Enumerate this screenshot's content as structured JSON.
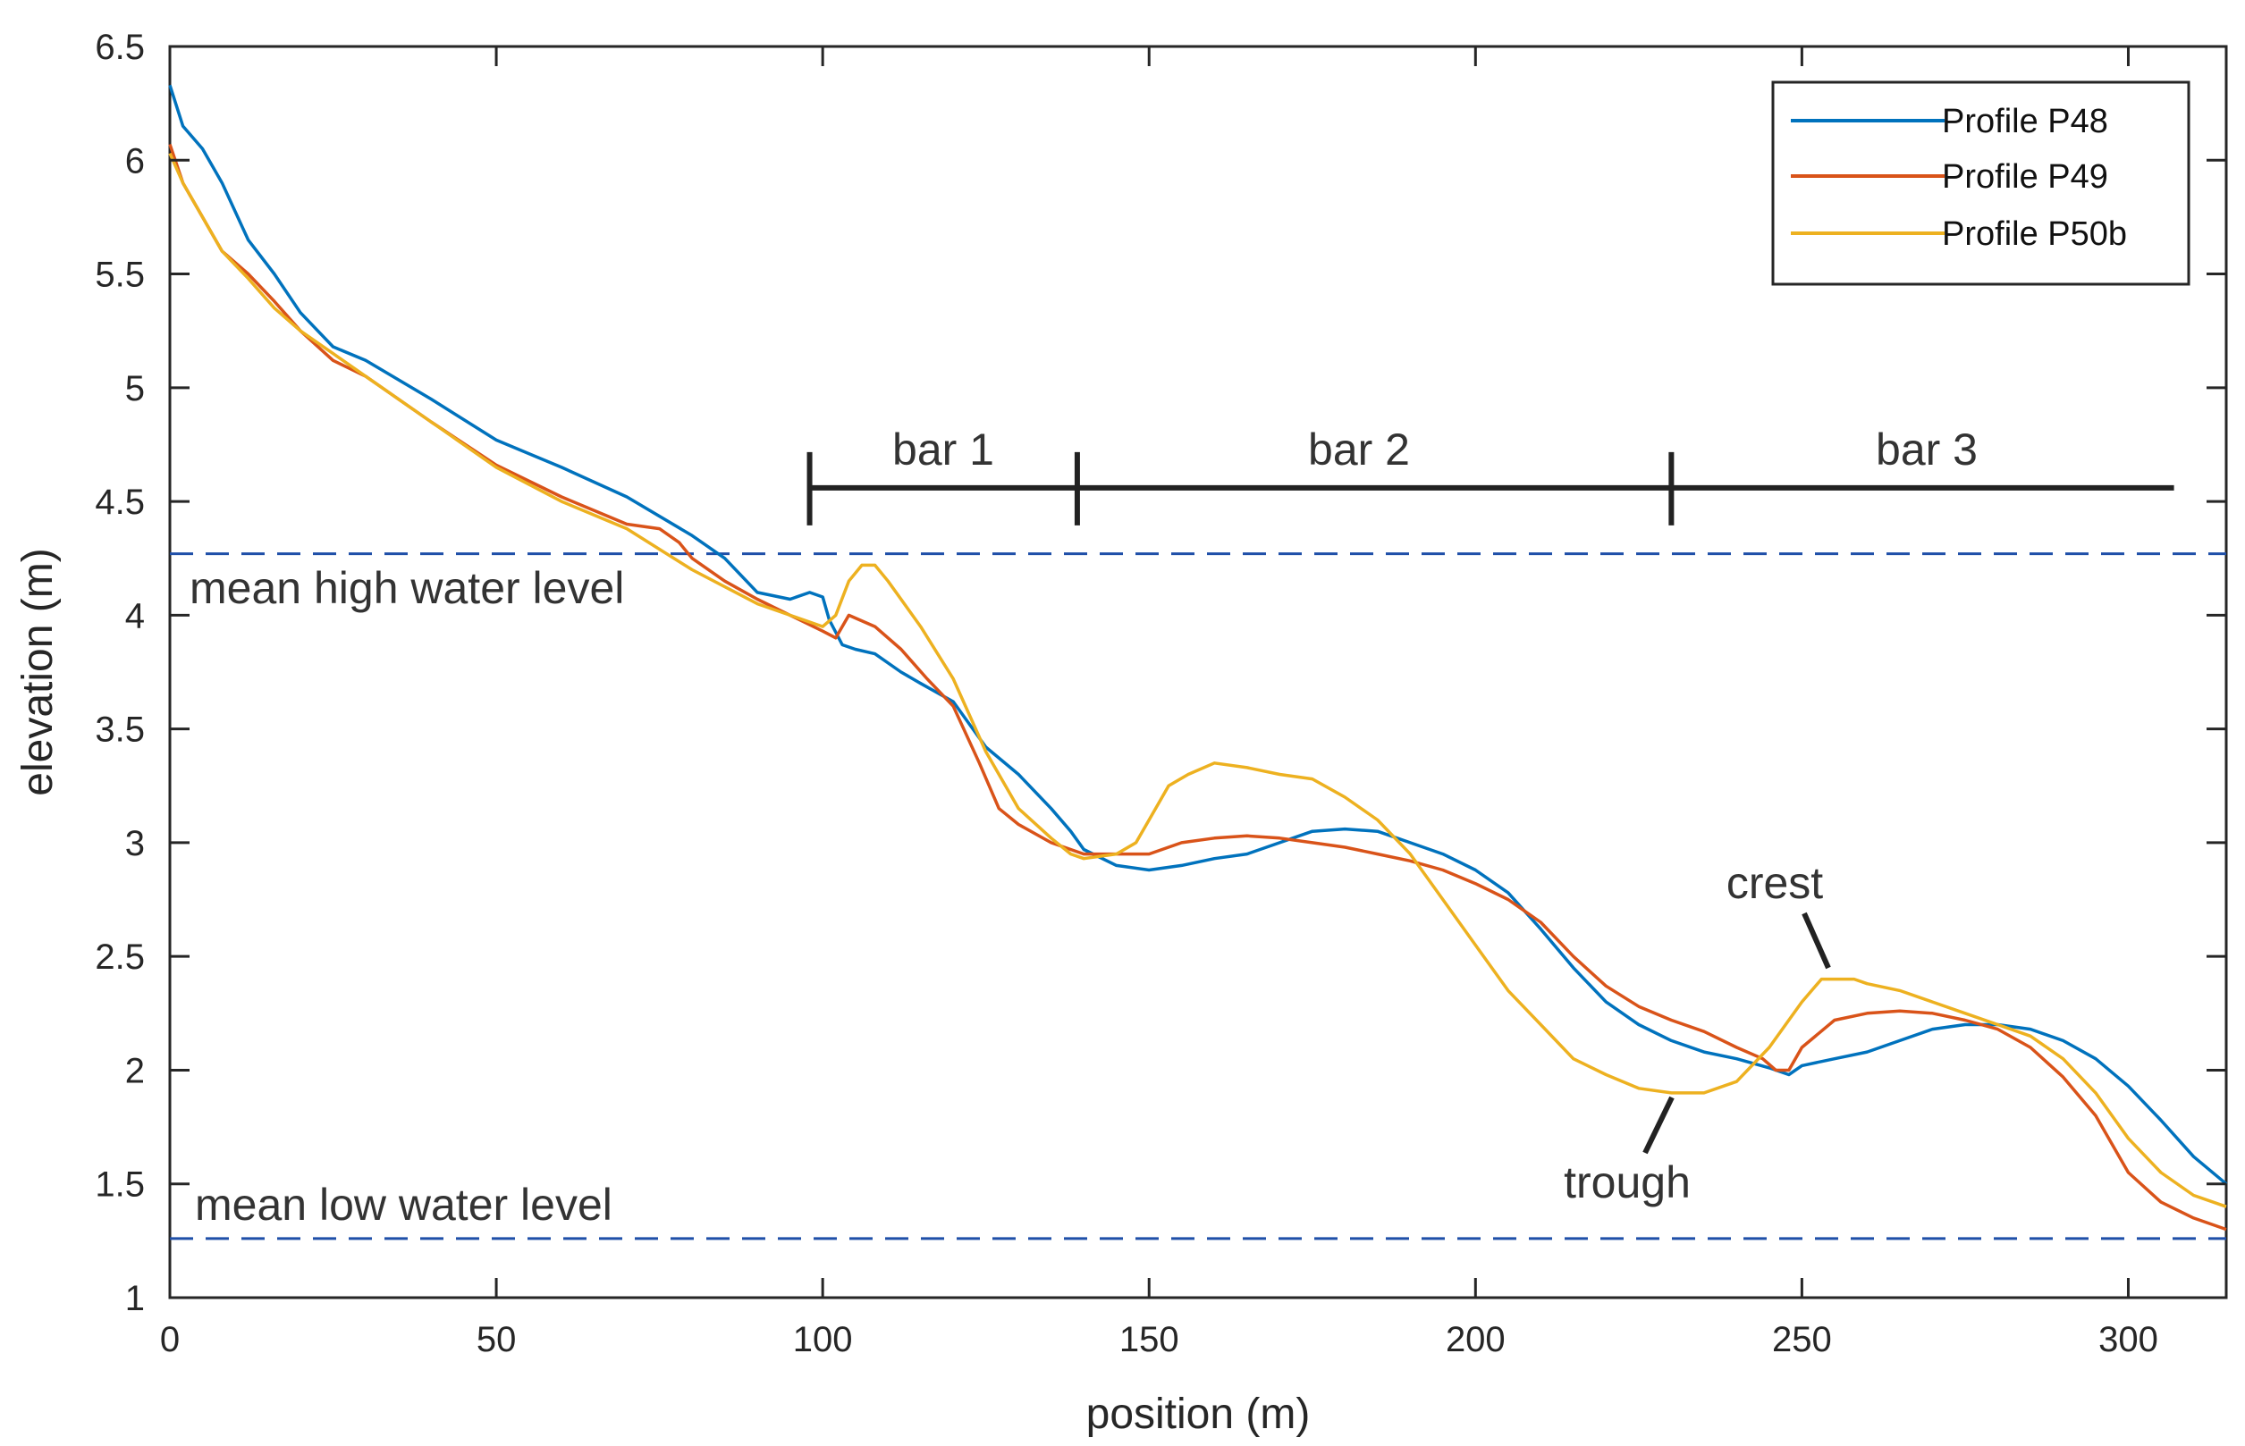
{
  "chart_data": {
    "type": "line",
    "xlabel": "position (m)",
    "ylabel": "elevation (m)",
    "xlim": [
      0,
      315
    ],
    "ylim": [
      1,
      6.5
    ],
    "xticks": [
      0,
      50,
      100,
      150,
      200,
      250,
      300
    ],
    "yticks": [
      1,
      1.5,
      2,
      2.5,
      3,
      3.5,
      4,
      4.5,
      5,
      5.5,
      6,
      6.5
    ],
    "xtick_labels": [
      "0",
      "50",
      "100",
      "150",
      "200",
      "250",
      "300"
    ],
    "ytick_labels": [
      "1",
      "1.5",
      "2",
      "2.5",
      "3",
      "3.5",
      "4",
      "4.5",
      "5",
      "5.5",
      "6",
      "6.5"
    ],
    "grid": false,
    "legend_position": "top-right",
    "series": [
      {
        "name": "Profile P48",
        "color": "#0072BD",
        "x": [
          0,
          2,
          5,
          8,
          12,
          16,
          20,
          25,
          30,
          40,
          50,
          60,
          70,
          80,
          85,
          90,
          95,
          98,
          100,
          101,
          103,
          105,
          108,
          112,
          115,
          120,
          125,
          130,
          135,
          138,
          140,
          145,
          150,
          155,
          160,
          165,
          170,
          175,
          180,
          185,
          190,
          195,
          200,
          205,
          210,
          215,
          220,
          225,
          230,
          235,
          240,
          245,
          248,
          250,
          255,
          260,
          265,
          270,
          275,
          280,
          285,
          290,
          295,
          300,
          305,
          310,
          315
        ],
        "y": [
          6.33,
          6.15,
          6.05,
          5.9,
          5.65,
          5.5,
          5.33,
          5.18,
          5.12,
          4.95,
          4.77,
          4.65,
          4.52,
          4.35,
          4.25,
          4.1,
          4.07,
          4.1,
          4.08,
          3.98,
          3.87,
          3.85,
          3.83,
          3.75,
          3.7,
          3.62,
          3.42,
          3.3,
          3.15,
          3.05,
          2.97,
          2.9,
          2.88,
          2.9,
          2.93,
          2.95,
          3.0,
          3.05,
          3.06,
          3.05,
          3.0,
          2.95,
          2.88,
          2.78,
          2.62,
          2.45,
          2.3,
          2.2,
          2.13,
          2.08,
          2.05,
          2.01,
          1.98,
          2.02,
          2.05,
          2.08,
          2.13,
          2.18,
          2.2,
          2.2,
          2.18,
          2.13,
          2.05,
          1.93,
          1.78,
          1.62,
          1.5
        ]
      },
      {
        "name": "Profile P49",
        "color": "#D95319",
        "x": [
          0,
          2,
          5,
          8,
          12,
          16,
          20,
          25,
          30,
          40,
          50,
          60,
          70,
          75,
          78,
          80,
          85,
          90,
          95,
          100,
          102,
          104,
          108,
          112,
          116,
          120,
          124,
          127,
          130,
          135,
          140,
          145,
          150,
          155,
          160,
          165,
          170,
          175,
          180,
          185,
          190,
          195,
          200,
          205,
          210,
          215,
          220,
          225,
          230,
          235,
          240,
          244,
          246,
          248,
          250,
          255,
          260,
          265,
          270,
          275,
          280,
          285,
          290,
          295,
          300,
          305,
          310,
          315
        ],
        "y": [
          6.07,
          5.9,
          5.75,
          5.6,
          5.5,
          5.38,
          5.25,
          5.12,
          5.05,
          4.85,
          4.66,
          4.52,
          4.4,
          4.38,
          4.32,
          4.25,
          4.15,
          4.07,
          4.0,
          3.93,
          3.9,
          4.0,
          3.95,
          3.85,
          3.72,
          3.6,
          3.35,
          3.15,
          3.08,
          3.0,
          2.95,
          2.95,
          2.95,
          3.0,
          3.02,
          3.03,
          3.02,
          3.0,
          2.98,
          2.95,
          2.92,
          2.88,
          2.82,
          2.75,
          2.65,
          2.5,
          2.37,
          2.28,
          2.22,
          2.17,
          2.1,
          2.05,
          2.0,
          2.0,
          2.1,
          2.22,
          2.25,
          2.26,
          2.25,
          2.22,
          2.18,
          2.1,
          1.97,
          1.8,
          1.55,
          1.42,
          1.35,
          1.3
        ]
      },
      {
        "name": "Profile P50b",
        "color": "#EDB120",
        "x": [
          0,
          2,
          5,
          8,
          12,
          16,
          20,
          25,
          30,
          40,
          50,
          60,
          70,
          80,
          90,
          95,
          100,
          102,
          104,
          106,
          108,
          110,
          115,
          120,
          125,
          130,
          135,
          138,
          140,
          145,
          148,
          150,
          153,
          156,
          160,
          165,
          170,
          175,
          180,
          185,
          190,
          195,
          200,
          205,
          210,
          215,
          220,
          225,
          230,
          235,
          240,
          245,
          250,
          253,
          255,
          258,
          260,
          265,
          270,
          275,
          280,
          285,
          290,
          295,
          300,
          305,
          310,
          315
        ],
        "y": [
          6.03,
          5.9,
          5.75,
          5.6,
          5.48,
          5.35,
          5.25,
          5.15,
          5.05,
          4.85,
          4.65,
          4.5,
          4.38,
          4.2,
          4.05,
          4.0,
          3.95,
          4.0,
          4.15,
          4.22,
          4.22,
          4.15,
          3.95,
          3.72,
          3.4,
          3.15,
          3.02,
          2.95,
          2.93,
          2.95,
          3.0,
          3.1,
          3.25,
          3.3,
          3.35,
          3.33,
          3.3,
          3.28,
          3.2,
          3.1,
          2.95,
          2.75,
          2.55,
          2.35,
          2.2,
          2.05,
          1.98,
          1.92,
          1.9,
          1.9,
          1.95,
          2.1,
          2.3,
          2.4,
          2.4,
          2.4,
          2.38,
          2.35,
          2.3,
          2.25,
          2.2,
          2.15,
          2.05,
          1.9,
          1.7,
          1.55,
          1.45,
          1.4
        ]
      }
    ],
    "reference_lines": [
      {
        "label": "mean high water level",
        "y": 4.27,
        "color": "#1F4FA8"
      },
      {
        "label": "mean low water level",
        "y": 1.26,
        "color": "#1F4FA8"
      }
    ],
    "segments": {
      "y": 4.56,
      "boundaries": [
        98,
        139,
        230,
        307
      ],
      "labels": [
        "bar 1",
        "bar 2",
        "bar 3"
      ]
    },
    "annotations": [
      {
        "text": "crest",
        "x": 254,
        "y": 2.4
      },
      {
        "text": "trough",
        "x": 230,
        "y": 1.88
      }
    ]
  }
}
